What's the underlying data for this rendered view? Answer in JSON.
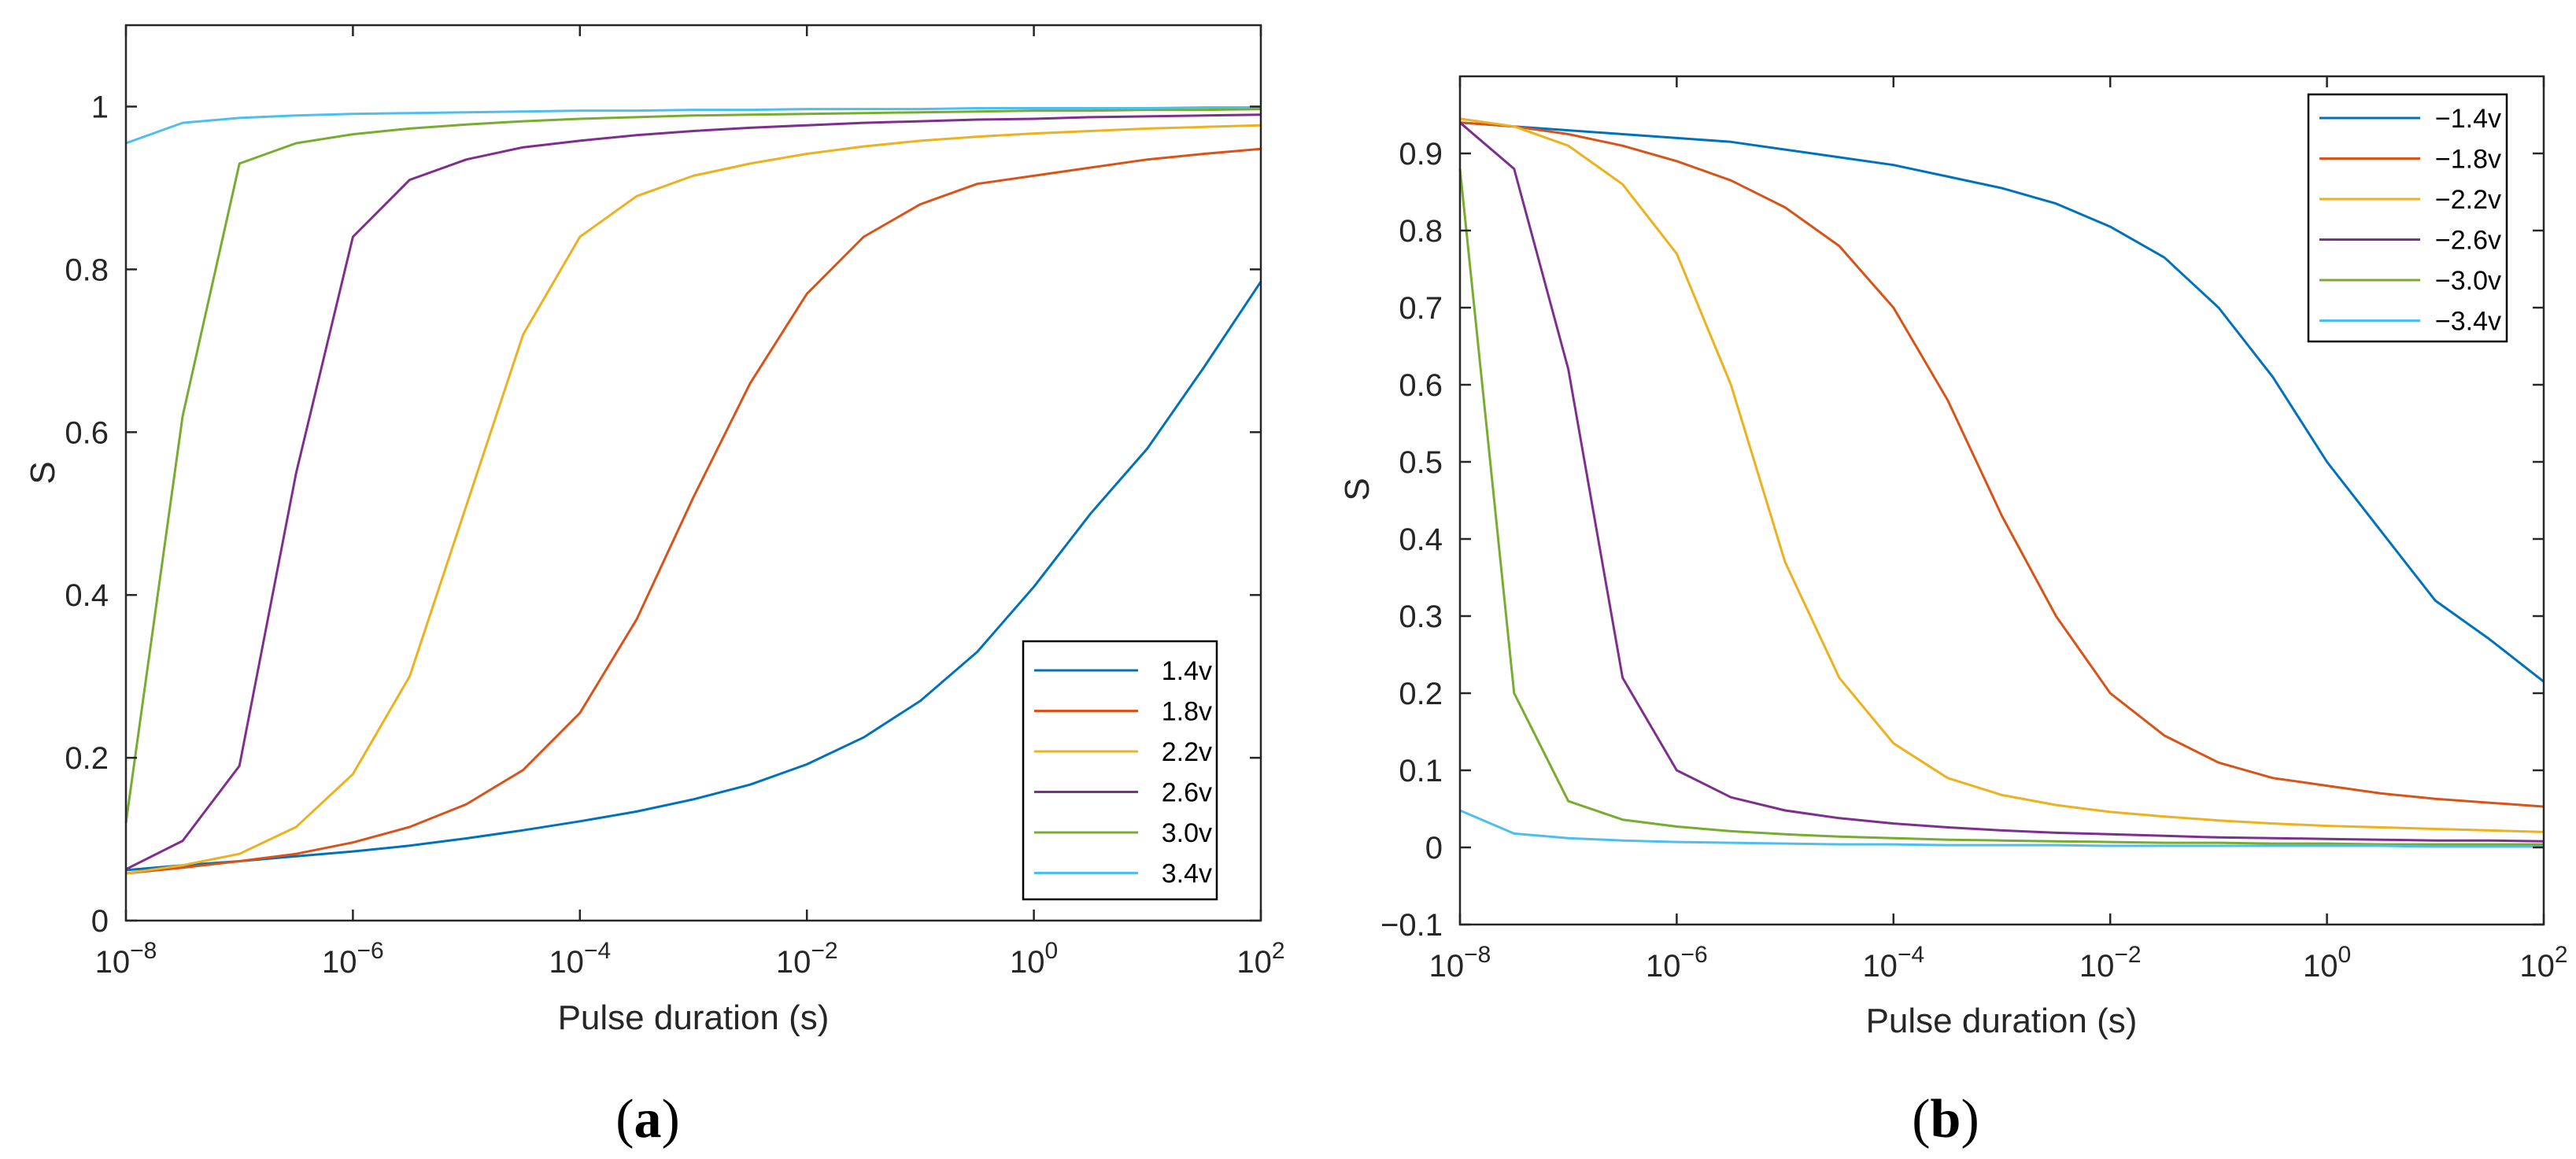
{
  "chart_data": [
    {
      "type": "line",
      "panel_label_open": "(",
      "panel_label_letter": "a",
      "panel_label_close": ")",
      "xlabel": "Pulse duration (s)",
      "ylabel": "S",
      "xscale": "log",
      "xlim": [
        1e-08,
        100
      ],
      "ylim": [
        0,
        1.1
      ],
      "x_ticks": [
        {
          "base": "10",
          "exp": "−8",
          "value": -8
        },
        {
          "base": "10",
          "exp": "−6",
          "value": -6
        },
        {
          "base": "10",
          "exp": "−4",
          "value": -4
        },
        {
          "base": "10",
          "exp": "−2",
          "value": -2
        },
        {
          "base": "10",
          "exp": "0",
          "value": 0
        },
        {
          "base": "10",
          "exp": "2",
          "value": 2
        }
      ],
      "y_ticks": [
        {
          "label": "0",
          "value": 0
        },
        {
          "label": "0.2",
          "value": 0.2
        },
        {
          "label": "0.4",
          "value": 0.4
        },
        {
          "label": "0.6",
          "value": 0.6
        },
        {
          "label": "0.8",
          "value": 0.8
        },
        {
          "label": "1",
          "value": 1.0
        }
      ],
      "legend_position": "bottom-right",
      "x": [
        -8,
        -7.5,
        -7,
        -6.5,
        -6,
        -5.5,
        -5,
        -4.5,
        -4,
        -3.5,
        -3,
        -2.5,
        -2,
        -1.5,
        -1,
        -0.5,
        0,
        0.5,
        1,
        1.5,
        2
      ],
      "series": [
        {
          "name": "1.4v",
          "color": "#0072BD",
          "values": [
            0.062,
            0.068,
            0.073,
            0.079,
            0.085,
            0.092,
            0.101,
            0.111,
            0.122,
            0.134,
            0.149,
            0.167,
            0.192,
            0.225,
            0.27,
            0.33,
            0.41,
            0.5,
            0.58,
            0.68,
            0.785
          ]
        },
        {
          "name": "1.8v",
          "color": "#D95319",
          "values": [
            0.058,
            0.065,
            0.073,
            0.082,
            0.096,
            0.115,
            0.143,
            0.185,
            0.255,
            0.37,
            0.52,
            0.66,
            0.77,
            0.84,
            0.88,
            0.905,
            0.915,
            0.925,
            0.935,
            0.942,
            0.948
          ]
        },
        {
          "name": "2.2v",
          "color": "#EDB120",
          "values": [
            0.058,
            0.068,
            0.082,
            0.115,
            0.18,
            0.3,
            0.51,
            0.72,
            0.84,
            0.89,
            0.915,
            0.93,
            0.942,
            0.951,
            0.958,
            0.963,
            0.967,
            0.97,
            0.973,
            0.975,
            0.977
          ]
        },
        {
          "name": "2.6v",
          "color": "#7E2F8E",
          "values": [
            0.063,
            0.098,
            0.19,
            0.55,
            0.84,
            0.91,
            0.935,
            0.95,
            0.958,
            0.965,
            0.97,
            0.974,
            0.977,
            0.98,
            0.982,
            0.984,
            0.985,
            0.987,
            0.988,
            0.989,
            0.99
          ]
        },
        {
          "name": "3.0v",
          "color": "#77AC30",
          "values": [
            0.12,
            0.62,
            0.93,
            0.955,
            0.966,
            0.973,
            0.978,
            0.982,
            0.985,
            0.987,
            0.989,
            0.99,
            0.991,
            0.992,
            0.993,
            0.994,
            0.995,
            0.995,
            0.996,
            0.996,
            0.997
          ]
        },
        {
          "name": "3.4v",
          "color": "#4DBEEE",
          "values": [
            0.955,
            0.98,
            0.986,
            0.989,
            0.991,
            0.992,
            0.993,
            0.994,
            0.995,
            0.995,
            0.996,
            0.996,
            0.997,
            0.997,
            0.997,
            0.998,
            0.998,
            0.998,
            0.998,
            0.999,
            0.999
          ]
        }
      ]
    },
    {
      "type": "line",
      "panel_label_open": "(",
      "panel_label_letter": "b",
      "panel_label_close": ")",
      "xlabel": "Pulse duration (s)",
      "ylabel": "S",
      "xscale": "log",
      "xlim": [
        1e-08,
        100
      ],
      "ylim": [
        -0.1,
        1.0
      ],
      "x_ticks": [
        {
          "base": "10",
          "exp": "−8",
          "value": -8
        },
        {
          "base": "10",
          "exp": "−6",
          "value": -6
        },
        {
          "base": "10",
          "exp": "−4",
          "value": -4
        },
        {
          "base": "10",
          "exp": "−2",
          "value": -2
        },
        {
          "base": "10",
          "exp": "0",
          "value": 0
        },
        {
          "base": "10",
          "exp": "2",
          "value": 2
        }
      ],
      "y_ticks": [
        {
          "label": "−0.1",
          "value": -0.1
        },
        {
          "label": "0",
          "value": 0
        },
        {
          "label": "0.1",
          "value": 0.1
        },
        {
          "label": "0.2",
          "value": 0.2
        },
        {
          "label": "0.3",
          "value": 0.3
        },
        {
          "label": "0.4",
          "value": 0.4
        },
        {
          "label": "0.5",
          "value": 0.5
        },
        {
          "label": "0.6",
          "value": 0.6
        },
        {
          "label": "0.7",
          "value": 0.7
        },
        {
          "label": "0.8",
          "value": 0.8
        },
        {
          "label": "0.9",
          "value": 0.9
        }
      ],
      "legend_position": "top-right",
      "x": [
        -8,
        -7.5,
        -7,
        -6.5,
        -6,
        -5.5,
        -5,
        -4.5,
        -4,
        -3.5,
        -3,
        -2.5,
        -2,
        -1.5,
        -1,
        -0.5,
        0,
        0.5,
        1,
        1.5,
        2
      ],
      "series": [
        {
          "name": "−1.4v",
          "color": "#0072BD",
          "values": [
            0.94,
            0.935,
            0.93,
            0.925,
            0.92,
            0.915,
            0.905,
            0.895,
            0.885,
            0.87,
            0.855,
            0.835,
            0.805,
            0.765,
            0.7,
            0.61,
            0.5,
            0.41,
            0.32,
            0.27,
            0.215
          ]
        },
        {
          "name": "−1.8v",
          "color": "#D95319",
          "values": [
            0.94,
            0.935,
            0.925,
            0.91,
            0.89,
            0.865,
            0.83,
            0.78,
            0.7,
            0.58,
            0.43,
            0.3,
            0.2,
            0.145,
            0.11,
            0.09,
            0.08,
            0.07,
            0.063,
            0.058,
            0.053
          ]
        },
        {
          "name": "−2.2v",
          "color": "#EDB120",
          "values": [
            0.945,
            0.935,
            0.91,
            0.86,
            0.77,
            0.6,
            0.37,
            0.22,
            0.135,
            0.09,
            0.068,
            0.055,
            0.046,
            0.04,
            0.035,
            0.031,
            0.028,
            0.026,
            0.024,
            0.022,
            0.02
          ]
        },
        {
          "name": "−2.6v",
          "color": "#7E2F8E",
          "values": [
            0.94,
            0.88,
            0.62,
            0.22,
            0.1,
            0.065,
            0.048,
            0.038,
            0.031,
            0.026,
            0.022,
            0.019,
            0.017,
            0.015,
            0.013,
            0.012,
            0.011,
            0.01,
            0.009,
            0.009,
            0.008
          ]
        },
        {
          "name": "−3.0v",
          "color": "#77AC30",
          "values": [
            0.88,
            0.2,
            0.06,
            0.036,
            0.027,
            0.021,
            0.017,
            0.014,
            0.012,
            0.01,
            0.009,
            0.008,
            0.007,
            0.006,
            0.006,
            0.005,
            0.005,
            0.004,
            0.004,
            0.004,
            0.004
          ]
        },
        {
          "name": "−3.4v",
          "color": "#4DBEEE",
          "values": [
            0.048,
            0.018,
            0.012,
            0.009,
            0.007,
            0.006,
            0.005,
            0.004,
            0.004,
            0.003,
            0.003,
            0.003,
            0.002,
            0.002,
            0.002,
            0.002,
            0.002,
            0.002,
            0.001,
            0.001,
            0.001
          ]
        }
      ]
    }
  ]
}
